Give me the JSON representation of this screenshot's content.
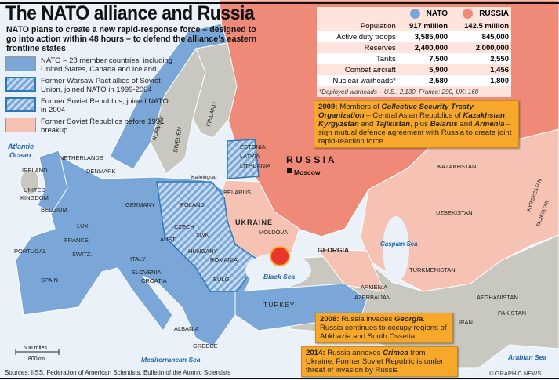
{
  "title": "The NATO alliance and Russia",
  "subtitle": "NATO plans to create a new rapid-response force – designed to go into action within 48 hours –  to defend the alliance’s eastern frontline states",
  "legend": [
    {
      "label": "NATO – 28 member countries, including United States, Canada and Iceland",
      "color": "#7aa7d8"
    },
    {
      "label": "Former Warsaw Pact allies of Soviet Union, joined NATO in 1999-2004",
      "color": "hatched-blue"
    },
    {
      "label": "Former Soviet Republics, joined NATO in 2004",
      "color": "hatched-blue"
    },
    {
      "label": "Former Soviet Republics before 1991 breakup",
      "color": "#f6c2b3"
    }
  ],
  "colors": {
    "nato": "#7aa7d8",
    "russia": "#f08a78",
    "former_soviet": "#f6c2b3",
    "other_land": "#c9c8c0",
    "sea": "#eaf1f8",
    "callout": "#f7a82a"
  },
  "stats": {
    "columns": [
      "NATO",
      "RUSSIA"
    ],
    "rows": [
      {
        "label": "Population",
        "nato": "917 million",
        "russia": "142.5 million"
      },
      {
        "label": "Active duty troops",
        "nato": "3,585,000",
        "russia": "845,000"
      },
      {
        "label": "Reserves",
        "nato": "2,400,000",
        "russia": "2,000,000"
      },
      {
        "label": "Tanks",
        "nato": "7,500",
        "russia": "2,550"
      },
      {
        "label": "Combat aircraft",
        "nato": "5,900",
        "russia": "1,456"
      },
      {
        "label": "Nuclear warheads*",
        "nato": "2,580",
        "russia": "1,800"
      }
    ],
    "footnote": "*Deployed warheads – U.S.: 2,130, France: 290, UK: 160"
  },
  "callouts": {
    "c2009": {
      "year": "2009:",
      "t1": " Members of ",
      "b1": "Collective Security Treaty Organization",
      "t2": " – Central Asian Republics of ",
      "b2": "Kazakhstan",
      "t3": ", ",
      "b3": "Kyrgyzstan",
      "t4": " and ",
      "b4": "Tajikistan",
      "t5": ", plus ",
      "b5": "Belarus",
      "t6": " and ",
      "b6": "Armenia",
      "t7": " – sign mutual defence agreement with Russia to create joint rapid-reaction force"
    },
    "c2008": {
      "year": "2008:",
      "t1": " Russia invades ",
      "b1": "Georgia",
      "t2": ". Russia continues to occupy regions of Abkhazia and South Ossetia"
    },
    "c2014": {
      "year": "2014:",
      "t1": " Russia annexes ",
      "b1": "Crimea",
      "t2": " from Ukraine. Former Soviet Republic is under threat of invasion by Russia"
    }
  },
  "labels": {
    "atlantic1": "Atlantic",
    "atlantic2": "Ocean",
    "norway": "NORWAY",
    "sweden": "SWEDEN",
    "finland": "FINLAND",
    "estonia": "ESTONIA",
    "latvia": "LATVIA",
    "lithuania": "LITHUANIA",
    "kaliningrad": "Kaliningrad",
    "ireland": "IRELAND",
    "uk1": "UNITED",
    "uk2": "KINGDOM",
    "netherlands": "NETHERLANDS",
    "denmark": "DENMARK",
    "belgium": "BELGIUM",
    "germany": "GERMANY",
    "poland": "POLAND",
    "belarus": "BELARUS",
    "lux": "LUX",
    "france": "FRANCE",
    "switz": "SWITZ.",
    "czech": "CZECH",
    "slvk": "SLVK",
    "aust": "AUST.",
    "hungary": "HUNGARY",
    "ukraine": "UKRAINE",
    "moldova": "MOLDOVA",
    "romania": "ROMANIA",
    "portugal": "PORTUGAL",
    "spain": "SPAIN",
    "italy": "ITALY",
    "slovenia": "SLOVENIA",
    "croatia": "CROATIA",
    "bulg": "BULG.",
    "black_sea": "Black Sea",
    "georgia": "GEORGIA",
    "albania": "ALBANIA",
    "greece": "GREECE",
    "turkey": "TURKEY",
    "armenia": "ARMENIA",
    "azerbaijan": "AZERBAIJAN",
    "med": "Mediterranean Sea",
    "iran": "IRAN",
    "caspian": "Caspian Sea",
    "turkmenistan": "TURKMENISTAN",
    "uzbekistan": "UZBEKISTAN",
    "kazakhstan": "KAZAKHSTAN",
    "kyrgyzstan": "KYRGYZSTAN",
    "tajikistan": "TAJIKISTAN",
    "afghanistan": "AFGHANISTAN",
    "pakistan": "PAKISTAN",
    "arabian": "Arabian Sea",
    "russia": "R U S S I A",
    "moscow": "Moscow"
  },
  "scale": {
    "miles": "500 miles",
    "km": "800km"
  },
  "source": "Sources: IISS, Federation of American Scientists, Bulletin of the Atomic Scientists",
  "credit": "© GRAPHIC NEWS"
}
